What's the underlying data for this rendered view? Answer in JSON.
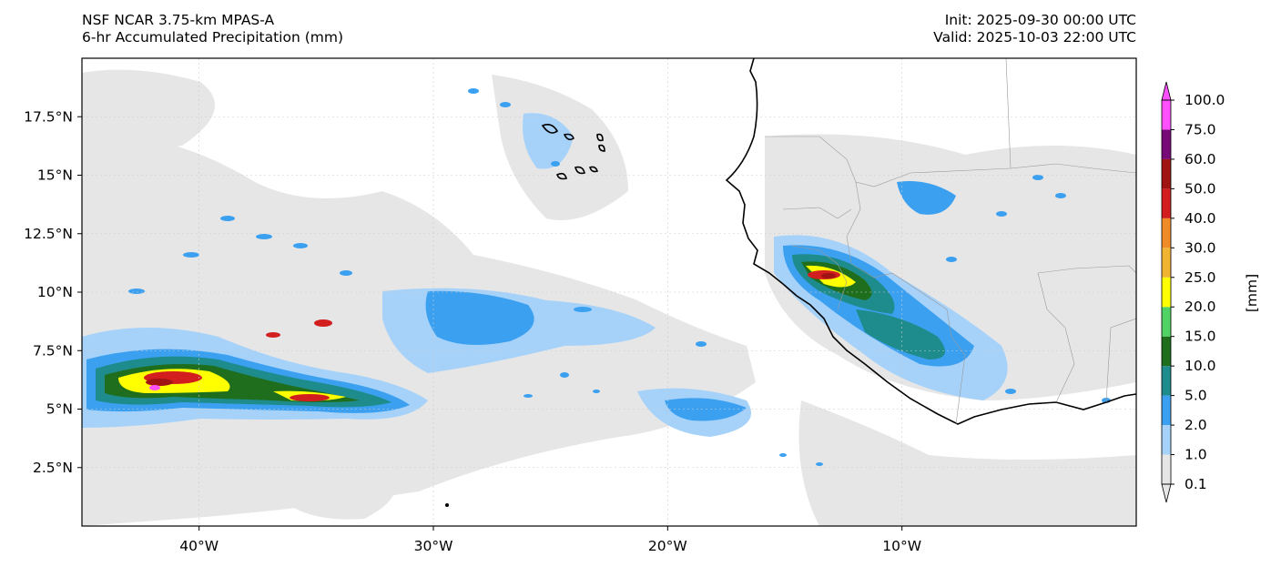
{
  "titles": {
    "left_line1": "NSF NCAR 3.75-km MPAS-A",
    "left_line2": "6-hr Accumulated Precipitation (mm)",
    "right_line1": "Init: 2025-09-30 00:00 UTC",
    "right_line2": "Valid: 2025-10-03 22:00 UTC"
  },
  "map": {
    "lon_range": [
      -45,
      0
    ],
    "lat_range": [
      0,
      20
    ],
    "lon_ticks": [
      {
        "lon": -40,
        "label": "40°W"
      },
      {
        "lon": -30,
        "label": "30°W"
      },
      {
        "lon": -20,
        "label": "20°W"
      },
      {
        "lon": -10,
        "label": "10°W"
      }
    ],
    "lat_ticks": [
      {
        "lat": 2.5,
        "label": "2.5°N"
      },
      {
        "lat": 5,
        "label": "5°N"
      },
      {
        "lat": 7.5,
        "label": "7.5°N"
      },
      {
        "lat": 10,
        "label": "10°N"
      },
      {
        "lat": 12.5,
        "label": "12.5°N"
      },
      {
        "lat": 15,
        "label": "15°N"
      },
      {
        "lat": 17.5,
        "label": "17.5°N"
      }
    ],
    "grid": true
  },
  "colorbar": {
    "unit_label": "[mm]",
    "levels": [
      {
        "value": "0.1",
        "color": "#e6e6e6"
      },
      {
        "value": "1.0",
        "color": "#a6d2fa"
      },
      {
        "value": "2.0",
        "color": "#3ca0f0"
      },
      {
        "value": "5.0",
        "color": "#1e8c8c"
      },
      {
        "value": "10.0",
        "color": "#1e6e1e"
      },
      {
        "value": "15.0",
        "color": "#50d264"
      },
      {
        "value": "20.0",
        "color": "#ffff00"
      },
      {
        "value": "25.0",
        "color": "#f0b432"
      },
      {
        "value": "30.0",
        "color": "#f08c28"
      },
      {
        "value": "40.0",
        "color": "#d21e1e"
      },
      {
        "value": "50.0",
        "color": "#a01414"
      },
      {
        "value": "60.0",
        "color": "#780a78"
      },
      {
        "value": "75.0",
        "color": "#ff50ff"
      },
      {
        "value": "100.0",
        "color": ""
      }
    ]
  }
}
